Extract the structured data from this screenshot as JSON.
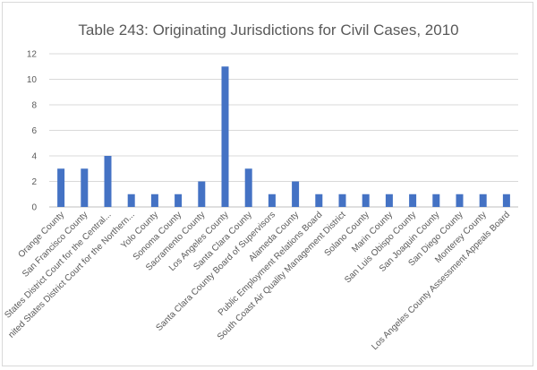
{
  "chart_data": {
    "type": "bar",
    "title": "Table 243: Originating Jurisdictions for Civil Cases, 2010",
    "xlabel": "",
    "ylabel": "",
    "ylim": [
      0,
      12
    ],
    "yticks": [
      0,
      2,
      4,
      6,
      8,
      10,
      12
    ],
    "grid": true,
    "legend": "none",
    "bar_color": "#4472c4",
    "categories": [
      "Orange County",
      "San Francisco County",
      "States District Court for the Central...",
      "nited States District Court for the Northern...",
      "Yolo County",
      "Sonoma County",
      "Sacramento County",
      "Los Angeles County",
      "Santa Clara County",
      "Santa Clara County Board of Supervisors",
      "Alameda County",
      "Public Employment Relations Board",
      "South Coast Air Quality Management District",
      "Solano County",
      "Marin County",
      "San Luis Obispo County",
      "San Joaquin County",
      "San Diego County",
      "Monterey County",
      "Los Angeles County Assessment Appeals Board"
    ],
    "values": [
      3,
      3,
      4,
      1,
      1,
      1,
      2,
      11,
      3,
      1,
      2,
      1,
      1,
      1,
      1,
      1,
      1,
      1,
      1,
      1
    ]
  }
}
